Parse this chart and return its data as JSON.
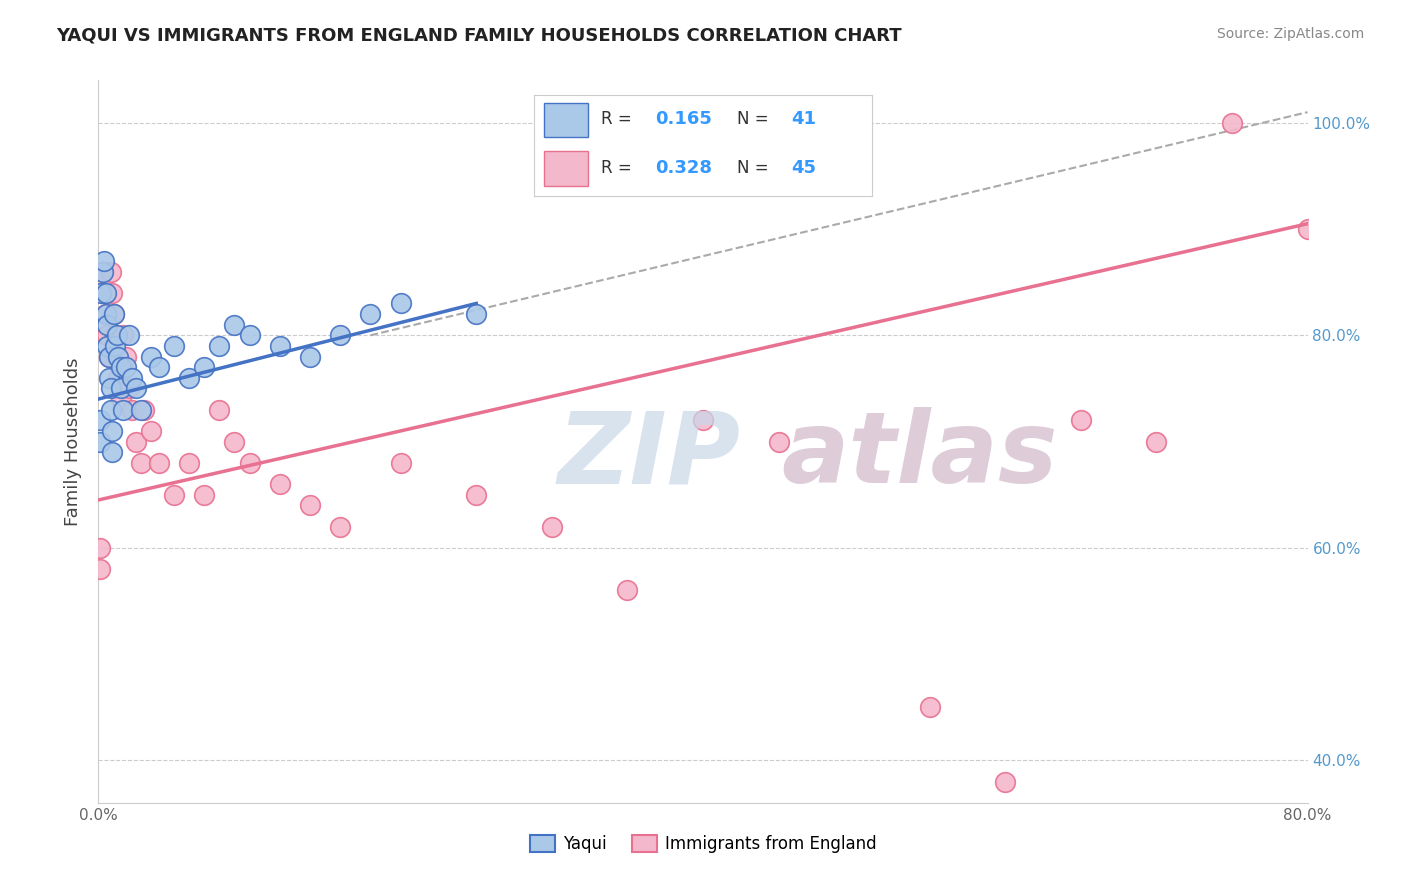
{
  "title": "YAQUI VS IMMIGRANTS FROM ENGLAND FAMILY HOUSEHOLDS CORRELATION CHART",
  "source": "Source: ZipAtlas.com",
  "ylabel": "Family Households",
  "xlim": [
    0.0,
    0.8
  ],
  "ylim": [
    0.36,
    1.04
  ],
  "blue_color": "#aac8e8",
  "pink_color": "#f4b8cc",
  "blue_edge_color": "#4472c4",
  "pink_edge_color": "#e87090",
  "blue_line_color": "#4472c4",
  "pink_line_color": "#e87090",
  "dash_line_color": "#aaaaaa",
  "watermark_zip_color": "#c8d8e8",
  "watermark_atlas_color": "#d0b8c8",
  "legend_r1": "0.165",
  "legend_n1": "41",
  "legend_r2": "0.328",
  "legend_n2": "45",
  "yaqui_x": [
    0.001,
    0.001,
    0.002,
    0.003,
    0.004,
    0.005,
    0.005,
    0.006,
    0.006,
    0.007,
    0.007,
    0.008,
    0.008,
    0.009,
    0.009,
    0.01,
    0.011,
    0.012,
    0.013,
    0.015,
    0.015,
    0.016,
    0.018,
    0.02,
    0.022,
    0.025,
    0.028,
    0.035,
    0.04,
    0.05,
    0.06,
    0.07,
    0.08,
    0.09,
    0.1,
    0.12,
    0.14,
    0.16,
    0.18,
    0.2,
    0.25
  ],
  "yaqui_y": [
    0.72,
    0.7,
    0.84,
    0.86,
    0.87,
    0.84,
    0.82,
    0.81,
    0.79,
    0.78,
    0.76,
    0.75,
    0.73,
    0.71,
    0.69,
    0.82,
    0.79,
    0.8,
    0.78,
    0.77,
    0.75,
    0.73,
    0.77,
    0.8,
    0.76,
    0.75,
    0.73,
    0.78,
    0.77,
    0.79,
    0.76,
    0.77,
    0.79,
    0.81,
    0.8,
    0.79,
    0.78,
    0.8,
    0.82,
    0.83,
    0.82
  ],
  "england_x": [
    0.001,
    0.001,
    0.002,
    0.003,
    0.004,
    0.005,
    0.006,
    0.007,
    0.008,
    0.009,
    0.01,
    0.011,
    0.012,
    0.013,
    0.015,
    0.016,
    0.018,
    0.02,
    0.022,
    0.025,
    0.028,
    0.03,
    0.035,
    0.04,
    0.05,
    0.06,
    0.07,
    0.08,
    0.09,
    0.1,
    0.12,
    0.14,
    0.16,
    0.2,
    0.25,
    0.3,
    0.35,
    0.4,
    0.45,
    0.55,
    0.6,
    0.65,
    0.7,
    0.75,
    0.8
  ],
  "england_y": [
    0.6,
    0.58,
    0.84,
    0.86,
    0.84,
    0.82,
    0.8,
    0.78,
    0.86,
    0.84,
    0.82,
    0.8,
    0.78,
    0.76,
    0.74,
    0.8,
    0.78,
    0.75,
    0.73,
    0.7,
    0.68,
    0.73,
    0.71,
    0.68,
    0.65,
    0.68,
    0.65,
    0.73,
    0.7,
    0.68,
    0.66,
    0.64,
    0.62,
    0.68,
    0.65,
    0.62,
    0.56,
    0.72,
    0.7,
    0.45,
    0.38,
    0.72,
    0.7,
    1.0,
    0.9
  ],
  "blue_trend_x0": 0.0,
  "blue_trend_y0": 0.74,
  "blue_trend_x1": 0.25,
  "blue_trend_y1": 0.83,
  "pink_trend_x0": 0.0,
  "pink_trend_y0": 0.645,
  "pink_trend_x1": 0.8,
  "pink_trend_y1": 0.905,
  "dash_line_x0": 0.18,
  "dash_line_y0": 0.8,
  "dash_line_x1": 0.8,
  "dash_line_y1": 1.01
}
